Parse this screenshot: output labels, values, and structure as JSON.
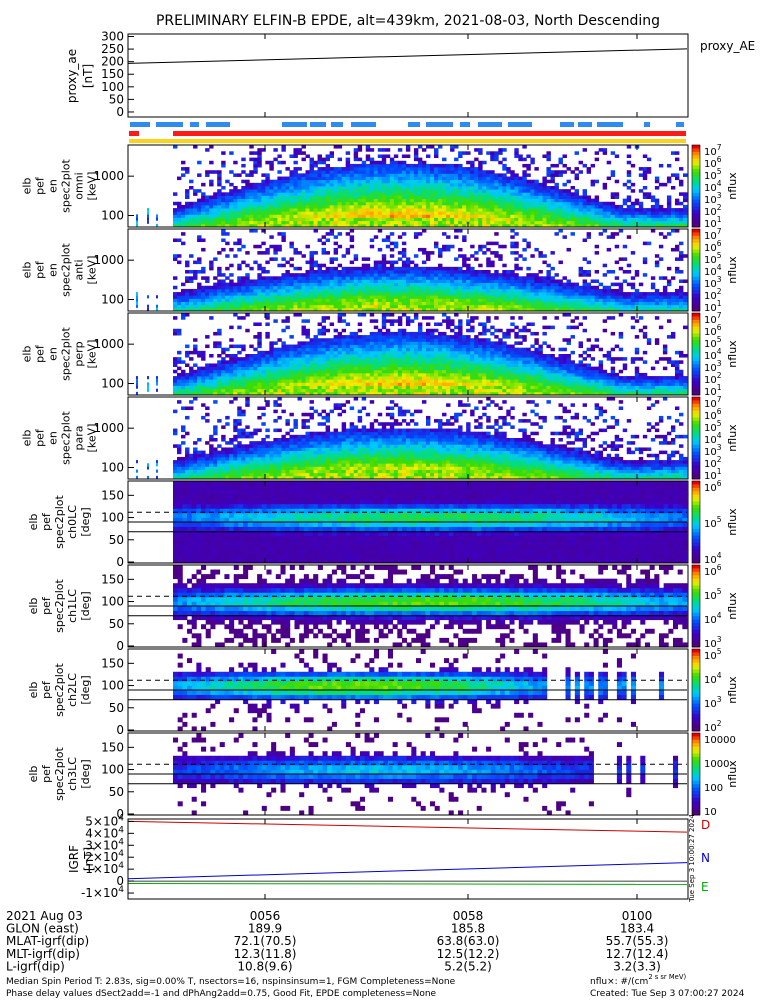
{
  "title": "PRELIMINARY ELFIN-B EPDE, alt=439km, 2021-08-03, North Descending",
  "proxy_ae_panel": {
    "ylabel": [
      "proxy_ae",
      "[nT]"
    ],
    "yticks": [
      "300",
      "250",
      "200",
      "150",
      "100",
      "50",
      "0"
    ],
    "legend": "proxy_AE"
  },
  "spec_panels": [
    {
      "ylabel": [
        "elb",
        "pef",
        "en",
        "spec2plot",
        "omni",
        "[keV]"
      ],
      "yticks": [
        "1000",
        "100"
      ],
      "cbar_ticks": [
        "10^7",
        "10^6",
        "10^5",
        "10^4",
        "10^3",
        "10^2",
        "10^1"
      ],
      "cbar_label": "nflux"
    },
    {
      "ylabel": [
        "elb",
        "pef",
        "en",
        "spec2plot",
        "anti",
        "[keV]"
      ],
      "yticks": [
        "1000",
        "100"
      ],
      "cbar_ticks": [
        "10^7",
        "10^6",
        "10^5",
        "10^4",
        "10^3",
        "10^2",
        "10^1"
      ],
      "cbar_label": "nflux"
    },
    {
      "ylabel": [
        "elb",
        "pef",
        "en",
        "spec2plot",
        "perp",
        "[keV]"
      ],
      "yticks": [
        "1000",
        "100"
      ],
      "cbar_ticks": [
        "10^7",
        "10^6",
        "10^5",
        "10^4",
        "10^3",
        "10^2",
        "10^1"
      ],
      "cbar_label": "nflux"
    },
    {
      "ylabel": [
        "elb",
        "pef",
        "en",
        "spec2plot",
        "para",
        "[keV]"
      ],
      "yticks": [
        "1000",
        "100"
      ],
      "cbar_ticks": [
        "10^7",
        "10^6",
        "10^5",
        "10^4",
        "10^3",
        "10^2",
        "10^1"
      ],
      "cbar_label": "nflux"
    },
    {
      "ylabel": [
        "elb",
        "pef",
        "spec2plot",
        "ch0LC",
        "[deg]"
      ],
      "yticks": [
        "150",
        "100",
        "50",
        "0"
      ],
      "cbar_ticks": [
        "10^6",
        "10^5",
        "10^4"
      ],
      "cbar_label": "nflux"
    },
    {
      "ylabel": [
        "elb",
        "pef",
        "spec2plot",
        "ch1LC",
        "[deg]"
      ],
      "yticks": [
        "150",
        "100",
        "50",
        "0"
      ],
      "cbar_ticks": [
        "10^6",
        "10^5",
        "10^4",
        "10^3"
      ],
      "cbar_label": "nflux"
    },
    {
      "ylabel": [
        "elb",
        "pef",
        "spec2plot",
        "ch2LC",
        "[deg]"
      ],
      "yticks": [
        "150",
        "100",
        "50",
        "0"
      ],
      "cbar_ticks": [
        "10^5",
        "10^4",
        "10^3",
        "10^2"
      ],
      "cbar_label": "nflux"
    },
    {
      "ylabel": [
        "elb",
        "pef",
        "spec2plot",
        "ch3LC",
        "[deg]"
      ],
      "yticks": [
        "150",
        "100",
        "50",
        "0"
      ],
      "cbar_ticks": [
        "10000",
        "1000",
        "100",
        "10"
      ],
      "cbar_label": "nflux"
    }
  ],
  "igrf_panel": {
    "ylabel": [
      "IGRF",
      "[nT]"
    ],
    "yticks": [
      "5x10^4",
      "4x10^4",
      "3x10^4",
      "2x10^4",
      "1x10^4",
      "0",
      "-1x10^4"
    ],
    "labels": [
      {
        "text": "D",
        "color": "#cc0000"
      },
      {
        "text": "N",
        "color": "#0000cc"
      },
      {
        "text": "E",
        "color": "#00aa00"
      }
    ],
    "side_stamp": "Tue Sep  3 10:00:27 2024"
  },
  "colors": {
    "bar_blue": "#2f8bf0",
    "bar_red": "#ff1a1a",
    "bar_yellow": "#ffd21a",
    "proxy_line": "#000000"
  },
  "footer_table": {
    "rows": [
      [
        "2021 Aug 03",
        "0056",
        "0058",
        "0100"
      ],
      [
        "GLON (east)",
        "189.9",
        "185.8",
        "183.4"
      ],
      [
        "MLAT-igrf(dip)",
        "72.1(70.5)",
        "63.8(63.0)",
        "55.7(55.3)"
      ],
      [
        "MLT-igrf(dip)",
        "12.3(11.8)",
        "12.5(12.2)",
        "12.7(12.4)"
      ],
      [
        "L-igrf(dip)",
        "10.8(9.6)",
        "5.2(5.2)",
        "3.2(3.3)"
      ]
    ]
  },
  "notes": {
    "line1_left": "Median Spin Period T: 2.83s, sig=0.00% T, nsectors=16, nspinsinsum=1, FGM Completeness=None",
    "line2_left": "Phase delay values dSect2add=-1 and dPhAng2add=0.75, Good Fit, EPDE completeness=None",
    "line1_right": "nflux: #/(cm^2 s sr MeV)",
    "line2_right": "Created: Tue Sep  3 07:00:27 2024"
  },
  "chart_data": [
    {
      "type": "line",
      "title": "PRELIMINARY ELFIN-B EPDE, alt=439km, 2021-08-03, North Descending",
      "xlabel": "",
      "ylabel": "proxy_ae [nT]",
      "ylim": [
        -20,
        310
      ],
      "x": [
        "00:54:50",
        "01:00:55"
      ],
      "series": [
        {
          "name": "proxy_AE",
          "values": [
            193,
            251
          ]
        }
      ],
      "grid": false,
      "legend": "right"
    },
    {
      "type": "heatmap",
      "description_units": "nflux",
      "panels": [
        "omni",
        "anti",
        "perp",
        "para",
        "ch0LC",
        "ch1LC",
        "ch2LC",
        "ch3LC"
      ],
      "x_range": [
        "00:54:50",
        "01:00:55"
      ],
      "energy_ylim_keV": [
        60,
        6000
      ],
      "pitch_ylim_deg": [
        0,
        180
      ]
    },
    {
      "type": "line",
      "ylabel": "IGRF [nT]",
      "ylim": [
        -15000,
        52000
      ],
      "x": [
        "00:54:50",
        "01:00:55"
      ],
      "series": [
        {
          "name": "D",
          "values": [
            50000,
            41000
          ]
        },
        {
          "name": "N",
          "values": [
            2000,
            15500
          ]
        },
        {
          "name": "E",
          "values": [
            -2000,
            -2800
          ]
        }
      ]
    }
  ]
}
